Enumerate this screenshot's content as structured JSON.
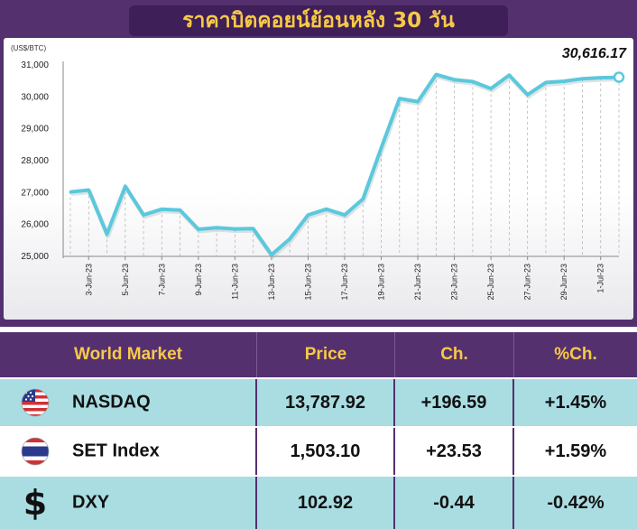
{
  "title": "ราคาบิตคอยน์ย้อนหลัง 30 วัน",
  "latest_value_label": "30,616.17",
  "colors": {
    "panel": "#55306f",
    "accent": "#f7c948",
    "line": "#5bc8dc",
    "row_alt": "#a9dde2"
  },
  "chart_data": {
    "type": "line",
    "unit_label": "(US$/BTC)",
    "ylim": [
      25000,
      31000
    ],
    "yticks": [
      25000,
      26000,
      27000,
      28000,
      29000,
      30000,
      31000
    ],
    "ytick_labels": [
      "25,000",
      "26,000",
      "27,000",
      "28,000",
      "29,000",
      "30,000",
      "31,000"
    ],
    "xtick_labels": [
      "3-Jun-23",
      "5-Jun-23",
      "7-Jun-23",
      "9-Jun-23",
      "11-Jun-23",
      "13-Jun-23",
      "15-Jun-23",
      "17-Jun-23",
      "19-Jun-23",
      "21-Jun-23",
      "23-Jun-23",
      "25-Jun-23",
      "27-Jun-23",
      "29-Jun-23",
      "1-Jul-23"
    ],
    "x": [
      "2-Jun-23",
      "3-Jun-23",
      "4-Jun-23",
      "5-Jun-23",
      "6-Jun-23",
      "7-Jun-23",
      "8-Jun-23",
      "9-Jun-23",
      "10-Jun-23",
      "11-Jun-23",
      "12-Jun-23",
      "13-Jun-23",
      "14-Jun-23",
      "15-Jun-23",
      "16-Jun-23",
      "17-Jun-23",
      "18-Jun-23",
      "19-Jun-23",
      "20-Jun-23",
      "21-Jun-23",
      "22-Jun-23",
      "23-Jun-23",
      "24-Jun-23",
      "25-Jun-23",
      "26-Jun-23",
      "27-Jun-23",
      "28-Jun-23",
      "29-Jun-23",
      "30-Jun-23",
      "1-Jul-23",
      "2-Jul-23"
    ],
    "values": [
      27020,
      27080,
      25700,
      27200,
      26300,
      26480,
      26450,
      25850,
      25900,
      25860,
      25870,
      25050,
      25550,
      26300,
      26480,
      26300,
      26800,
      28400,
      29950,
      29850,
      30700,
      30540,
      30480,
      30260,
      30680,
      30070,
      30450,
      30490,
      30570,
      30600,
      30616.17
    ],
    "grid": false
  },
  "table": {
    "headers": [
      "World Market",
      "Price",
      "Ch.",
      "%Ch."
    ],
    "rows": [
      {
        "icon": "us-flag-icon",
        "name": "NASDAQ",
        "price": "13,787.92",
        "change": "+196.59",
        "pct": "+1.45%"
      },
      {
        "icon": "thai-flag-icon",
        "name": "SET Index",
        "price": "1,503.10",
        "change": "+23.53",
        "pct": "+1.59%"
      },
      {
        "icon": "dollar-sign-icon",
        "name": "DXY",
        "price": "102.92",
        "change": "-0.44",
        "pct": "-0.42%"
      }
    ],
    "dollar_glyph": "$"
  }
}
